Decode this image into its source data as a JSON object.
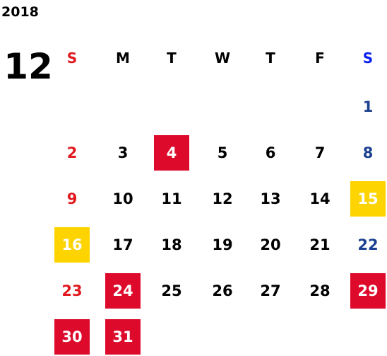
{
  "year": "2018",
  "month": "12",
  "weekdays": [
    {
      "label": "S",
      "style": "sun"
    },
    {
      "label": "M",
      "style": "day"
    },
    {
      "label": "T",
      "style": "day"
    },
    {
      "label": "W",
      "style": "day"
    },
    {
      "label": "T",
      "style": "day"
    },
    {
      "label": "F",
      "style": "day"
    },
    {
      "label": "S",
      "style": "sat"
    }
  ],
  "weeks": [
    [
      null,
      null,
      null,
      null,
      null,
      null,
      {
        "label": "1",
        "style": "sat"
      }
    ],
    [
      {
        "label": "2",
        "style": "sun"
      },
      {
        "label": "3",
        "style": "day"
      },
      {
        "label": "4",
        "style": "red"
      },
      {
        "label": "5",
        "style": "day"
      },
      {
        "label": "6",
        "style": "day"
      },
      {
        "label": "7",
        "style": "day"
      },
      {
        "label": "8",
        "style": "sat"
      }
    ],
    [
      {
        "label": "9",
        "style": "sun"
      },
      {
        "label": "10",
        "style": "day"
      },
      {
        "label": "11",
        "style": "day"
      },
      {
        "label": "12",
        "style": "day"
      },
      {
        "label": "13",
        "style": "day"
      },
      {
        "label": "14",
        "style": "day"
      },
      {
        "label": "15",
        "style": "yellow"
      }
    ],
    [
      {
        "label": "16",
        "style": "yellow"
      },
      {
        "label": "17",
        "style": "day"
      },
      {
        "label": "18",
        "style": "day"
      },
      {
        "label": "19",
        "style": "day"
      },
      {
        "label": "20",
        "style": "day"
      },
      {
        "label": "21",
        "style": "day"
      },
      {
        "label": "22",
        "style": "sat"
      }
    ],
    [
      {
        "label": "23",
        "style": "sun"
      },
      {
        "label": "24",
        "style": "red"
      },
      {
        "label": "25",
        "style": "day"
      },
      {
        "label": "26",
        "style": "day"
      },
      {
        "label": "27",
        "style": "day"
      },
      {
        "label": "28",
        "style": "day"
      },
      {
        "label": "29",
        "style": "red"
      }
    ],
    [
      {
        "label": "30",
        "style": "red"
      },
      {
        "label": "31",
        "style": "red"
      },
      null,
      null,
      null,
      null,
      null
    ]
  ]
}
